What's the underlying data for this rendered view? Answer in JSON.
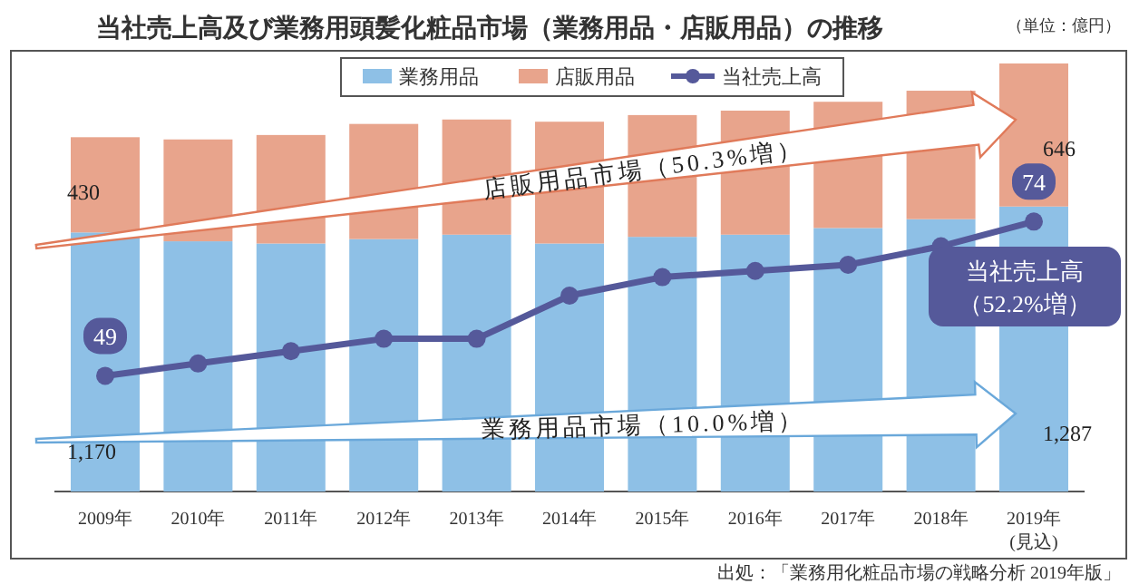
{
  "chart_data": {
    "type": "bar",
    "stacked": true,
    "title": "当社売上高及び業務用頭髪化粧品市場（業務用品・店販用品）の推移",
    "categories": [
      "2009年",
      "2010年",
      "2011年",
      "2012年",
      "2013年",
      "2014年",
      "2015年",
      "2016年",
      "2017年",
      "2018年",
      "2019年(見込)"
    ],
    "series": [
      {
        "name": "業務用品",
        "color": "#8ec0e6",
        "values": [
          1170,
          1130,
          1120,
          1140,
          1160,
          1120,
          1150,
          1160,
          1190,
          1230,
          1287
        ],
        "value_labels": [
          "1,170",
          null,
          null,
          null,
          null,
          null,
          null,
          null,
          null,
          null,
          "1,287"
        ]
      },
      {
        "name": "店販用品",
        "color": "#e8a48c",
        "values": [
          430,
          460,
          490,
          520,
          520,
          550,
          550,
          560,
          570,
          580,
          646
        ],
        "value_labels": [
          "430",
          null,
          null,
          null,
          null,
          null,
          null,
          null,
          null,
          null,
          "646"
        ]
      },
      {
        "name": "当社売上高",
        "type": "line",
        "axis": "y2",
        "color": "#55599a",
        "values": [
          49,
          51,
          53,
          55,
          55,
          62,
          65,
          66,
          67,
          70,
          74
        ],
        "value_labels": [
          "49",
          null,
          null,
          null,
          null,
          null,
          null,
          null,
          null,
          null,
          "74"
        ]
      }
    ],
    "marker": "circle",
    "line_style": "solid",
    "legend": "top",
    "annotations": [
      "（単位：億円）",
      "店販用品市場（50.3%増）",
      "業務用品市場（10.0%増）",
      "当社売上高（52.2%増）",
      "出処：「業務用化粧品市場の戦略分析 2019年版」"
    ]
  }
}
